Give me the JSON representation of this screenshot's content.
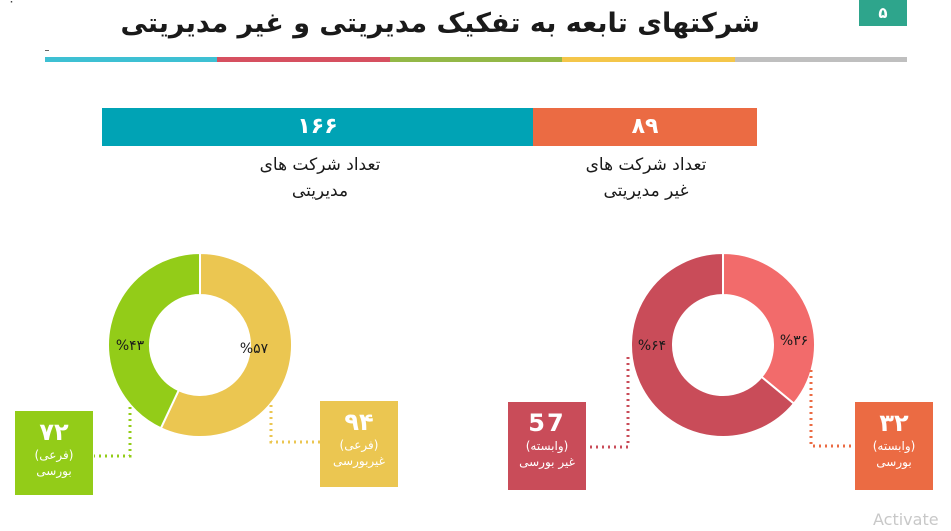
{
  "slide": {
    "title": "شرکتهای تابعه به تفکیک مدیریتی و غیر مدیریتی",
    "page_number": "۵",
    "corner_mark": "˙",
    "stripe_colors": [
      "#3ec0d3",
      "#d65060",
      "#93b847",
      "#f4c64a",
      "#bfbfbf"
    ]
  },
  "totals": {
    "management": {
      "value": "۱۶۶",
      "caption_line1": "تعداد شرکت های",
      "caption_line2": "مدیریتی",
      "color": "#00a3b5"
    },
    "non_management": {
      "value": "۸۹",
      "caption_line1": "تعداد شرکت های",
      "caption_line2": "غیر مدیریتی",
      "color": "#eb6b43"
    }
  },
  "donuts": {
    "management": {
      "slices": [
        {
          "label": "%۵۷",
          "fraction": 0.57,
          "color": "#ebc651"
        },
        {
          "label": "%۴۳",
          "fraction": 0.43,
          "color": "#93cc18"
        }
      ],
      "boxes": {
        "non_bourse": {
          "value": "۹۴",
          "line1": "(فرعی)",
          "line2": "غیربورسی",
          "color": "#ebc651"
        },
        "bourse": {
          "value": "۷۲",
          "line1": "(فرعی)",
          "line2": "بورسی",
          "color": "#93cc18"
        }
      }
    },
    "non_management": {
      "slices": [
        {
          "label": "%۳۶",
          "fraction": 0.36,
          "color": "#f26b6b"
        },
        {
          "label": "%۶۴",
          "fraction": 0.64,
          "color": "#c94c59"
        }
      ],
      "boxes": {
        "bourse": {
          "value": "۳۲",
          "line1": "(وابسته)",
          "line2": "بورسی",
          "color": "#eb6b43"
        },
        "non_bourse": {
          "value": "57",
          "line1": "(وابسته)",
          "line2": "غیر بورسی",
          "color": "#c94c59"
        }
      }
    }
  },
  "watermark": "Activate"
}
